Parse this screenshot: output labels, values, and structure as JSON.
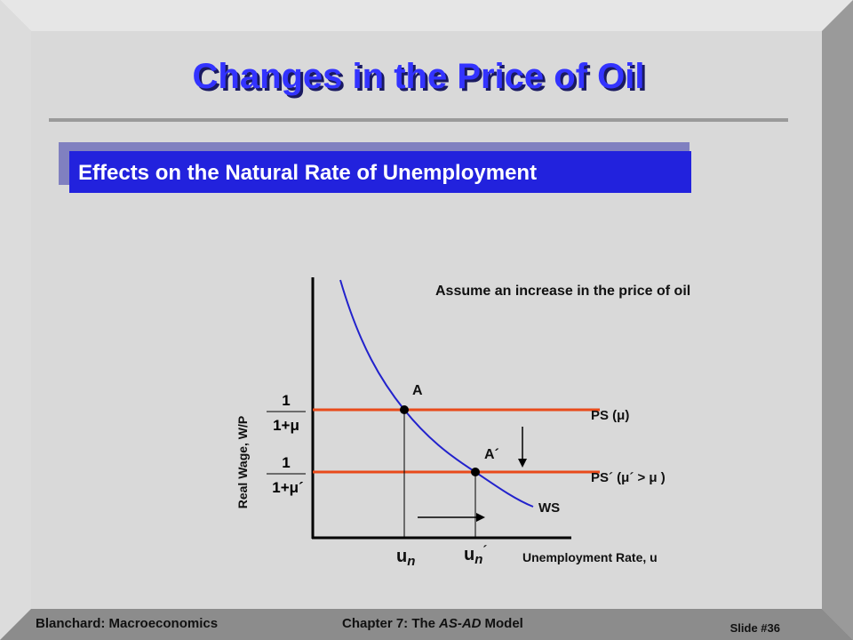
{
  "slide": {
    "title": "Changes in the Price of Oil",
    "subtitle": "Effects on the Natural Rate of Unemployment",
    "note": "Assume an increase in the price of oil",
    "diagram": {
      "y_axis_label": "Real Wage, W/P",
      "x_axis_label": "Unemployment Rate, u",
      "fraction_1": {
        "numerator": "1",
        "denominator": "1+μ"
      },
      "fraction_2": {
        "numerator": "1",
        "denominator": "1+μ´"
      },
      "point_a": "A",
      "point_a_prime": "A´",
      "ps_label": "PS (μ)",
      "ps_prime_label": "PS´ (μ´ > μ )",
      "ws_label": "WS",
      "un": {
        "base": "u",
        "sub": "n"
      },
      "un_prime": {
        "base": "u",
        "sub": "n",
        "prime": "´"
      }
    },
    "footer": {
      "left": "Blanchard: Macroeconomics",
      "center": [
        "Chapter 7: The",
        "AS-AD",
        "Model"
      ],
      "right": "Slide #36"
    }
  }
}
